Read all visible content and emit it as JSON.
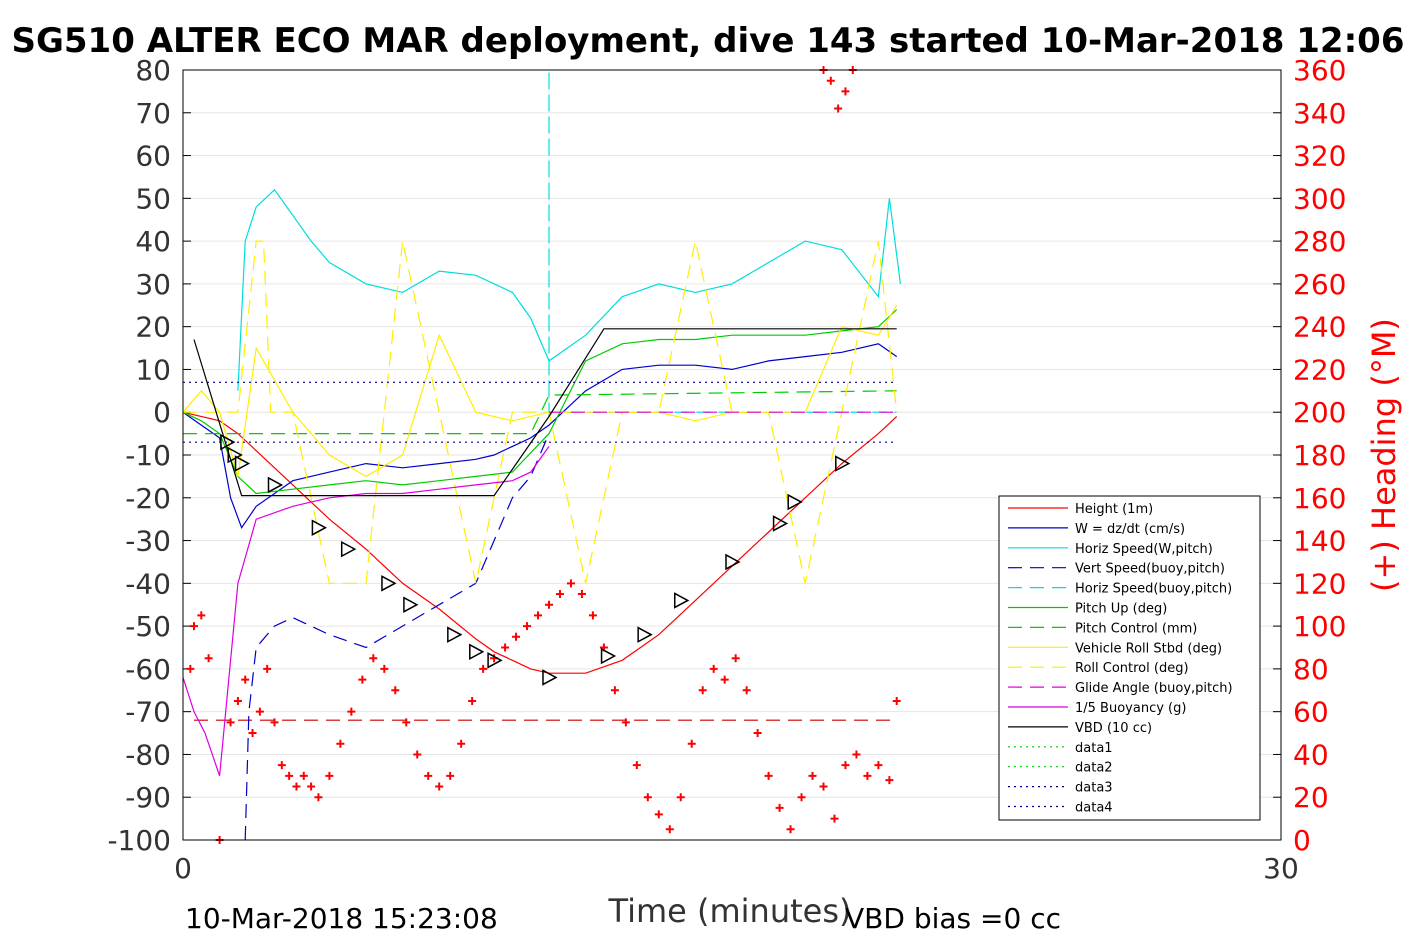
{
  "chart_data": {
    "type": "line",
    "title": "SG510 ALTER ECO MAR deployment, dive 143 started 10-Mar-2018 12:06",
    "xlabel": "Time (minutes)",
    "ylabel_right": "(+) Heading (°M)",
    "xlim": [
      0,
      30
    ],
    "ylim_left": [
      -100,
      80
    ],
    "ylim_right": [
      0,
      360
    ],
    "x_ticks": [
      "0",
      "30"
    ],
    "y_ticks_left": [
      "80",
      "70",
      "60",
      "50",
      "40",
      "30",
      "20",
      "10",
      "0",
      "-10",
      "-20",
      "-30",
      "-40",
      "-50",
      "-60",
      "-70",
      "-80",
      "-90",
      "-100"
    ],
    "y_ticks_right": [
      "360",
      "340",
      "320",
      "300",
      "280",
      "260",
      "240",
      "220",
      "200",
      "180",
      "160",
      "140",
      "120",
      "100",
      "80",
      "60",
      "40",
      "20",
      "0"
    ],
    "grid": true,
    "legend_position": "lower-right inside",
    "footer_left": "10-Mar-2018 15:23:08",
    "footer_right": "VBD bias =0 cc",
    "series": [
      {
        "name": "Height (1m)",
        "color": "#ff0000",
        "style": "solid",
        "x": [
          0,
          1,
          1.5,
          2,
          2.5,
          3,
          4,
          5,
          6,
          7,
          8,
          8.5,
          9,
          9.5,
          10,
          11,
          12,
          13,
          14,
          15,
          16,
          17,
          18,
          19,
          19.5
        ],
        "y": [
          0,
          -2,
          -5,
          -9,
          -13,
          -17,
          -25,
          -32,
          -40,
          -46,
          -53,
          -56,
          -58,
          -60,
          -61,
          -61,
          -58,
          -52,
          -44,
          -36,
          -28,
          -20,
          -12,
          -5,
          -1
        ]
      },
      {
        "name": "W = dz/dt (cm/s)",
        "color": "#0000cc",
        "style": "solid",
        "x": [
          0,
          0.5,
          1,
          1.3,
          1.6,
          2,
          3,
          4,
          5,
          6,
          7,
          8,
          8.5,
          9,
          9.5,
          10,
          11,
          12,
          13,
          14,
          15,
          16,
          17,
          18,
          19,
          19.5
        ],
        "y": [
          0,
          -3,
          -6,
          -20,
          -27,
          -22,
          -16,
          -14,
          -12,
          -13,
          -12,
          -11,
          -10,
          -8,
          -6,
          -3,
          5,
          10,
          11,
          11,
          10,
          12,
          13,
          14,
          16,
          13
        ]
      },
      {
        "name": "Horiz Speed(W,pitch)",
        "color": "#00dddd",
        "style": "solid",
        "x": [
          1.5,
          1.7,
          2,
          2.5,
          3,
          3.5,
          4,
          5,
          6,
          7,
          8,
          9,
          9.5,
          10,
          11,
          12,
          13,
          14,
          15,
          16,
          17,
          18,
          19,
          19.3,
          19.6
        ],
        "y": [
          5,
          40,
          48,
          52,
          46,
          40,
          35,
          30,
          28,
          33,
          32,
          28,
          22,
          12,
          18,
          27,
          30,
          28,
          30,
          35,
          40,
          38,
          27,
          50,
          30
        ]
      },
      {
        "name": "Vert Speed(buoy,pitch)",
        "color": "#0000cc",
        "style": "dashed",
        "x": [
          1.7,
          1.8,
          2,
          2.5,
          3,
          4,
          5,
          6,
          7,
          8,
          8.5,
          9,
          9.5,
          10
        ],
        "y": [
          -100,
          -70,
          -55,
          -50,
          -48,
          -52,
          -55,
          -50,
          -45,
          -40,
          -30,
          -20,
          -15,
          -5
        ]
      },
      {
        "name": "Horiz Speed(buoy,pitch)",
        "color": "#00dddd",
        "style": "dashed",
        "x": [
          10,
          10,
          10,
          10.2,
          12,
          19.5
        ],
        "y": [
          -1,
          80,
          0,
          0,
          0,
          0
        ]
      },
      {
        "name": "Pitch Up (deg)",
        "color": "#00cc00",
        "style": "solid",
        "x": [
          0,
          0.5,
          1,
          1.5,
          2,
          3,
          4,
          5,
          6,
          7,
          8,
          9,
          10,
          11,
          12,
          13,
          14,
          15,
          16,
          17,
          18,
          19,
          19.5
        ],
        "y": [
          0,
          -2,
          -5,
          -15,
          -19,
          -18,
          -17,
          -16,
          -17,
          -16,
          -15,
          -14,
          -5,
          12,
          16,
          17,
          17,
          18,
          18,
          18,
          19,
          20,
          24
        ]
      },
      {
        "name": "Pitch Control (mm)",
        "color": "#00cc00",
        "style": "dashed",
        "x": [
          0,
          1.5,
          8,
          8.5,
          9,
          9.5,
          10,
          19.5
        ],
        "y": [
          -5,
          -5,
          -5,
          -5,
          -5,
          -5,
          4,
          5
        ]
      },
      {
        "name": "Vehicle Roll Stbd (deg)",
        "color": "#ffee00",
        "style": "solid",
        "x": [
          0,
          0.5,
          1,
          1.5,
          2,
          3,
          4,
          5,
          6,
          7,
          8,
          9,
          10,
          11,
          12,
          13,
          14,
          15,
          16,
          17,
          18,
          19,
          19.5
        ],
        "y": [
          0,
          5,
          0,
          -15,
          15,
          0,
          -10,
          -15,
          -10,
          18,
          0,
          -2,
          0,
          0,
          0,
          0,
          -2,
          0,
          0,
          0,
          20,
          18,
          25
        ]
      },
      {
        "name": "Roll Control (deg)",
        "color": "#ffee00",
        "style": "dashed",
        "x": [
          0,
          1.5,
          2,
          2.2,
          2.4,
          3,
          4,
          5,
          5.5,
          6,
          7,
          8,
          9,
          10,
          11,
          12,
          13,
          14,
          15,
          16,
          17,
          18,
          19,
          19.5
        ],
        "y": [
          0,
          0,
          40,
          40,
          0,
          0,
          -40,
          -40,
          0,
          40,
          0,
          -40,
          0,
          0,
          -40,
          0,
          0,
          40,
          0,
          0,
          -40,
          0,
          40,
          0
        ]
      },
      {
        "name": "Glide Angle (buoy,pitch)",
        "color": "#dd00dd",
        "style": "dashed",
        "x": [
          10,
          19.5
        ],
        "y": [
          0,
          0
        ]
      },
      {
        "name": "1/5 Buoyancy (g)",
        "color": "#dd00dd",
        "style": "solid",
        "x": [
          0,
          0.3,
          0.6,
          1,
          1.5,
          2,
          3,
          4,
          5,
          6,
          7,
          8,
          9,
          9.5,
          10
        ],
        "y": [
          -62,
          -70,
          -75,
          -85,
          -40,
          -25,
          -22,
          -20,
          -19,
          -19,
          -18,
          -17,
          -16,
          -14,
          -8
        ]
      },
      {
        "name": "VBD (10 cc)",
        "color": "#000000",
        "style": "solid",
        "x": [
          0.3,
          1.6,
          8.5,
          10,
          11.5,
          19.5
        ],
        "y": [
          17,
          -19.5,
          -19.5,
          -1,
          19.5,
          19.5
        ]
      },
      {
        "name": "data1",
        "color": "#00cc00",
        "style": "dotted",
        "x": [],
        "y": []
      },
      {
        "name": "data2",
        "color": "#00cc00",
        "style": "dotted",
        "x": [],
        "y": []
      },
      {
        "name": "data3",
        "color": "#000088",
        "style": "dotted",
        "x": [
          0,
          19.5
        ],
        "y": [
          7,
          7
        ]
      },
      {
        "name": "data4",
        "color": "#000088",
        "style": "dotted",
        "x": [
          0,
          19.5
        ],
        "y": [
          -7,
          -7
        ]
      }
    ],
    "extra_lines": [
      {
        "color": "#cc0000",
        "style": "dashed",
        "x": [
          0.3,
          19.5
        ],
        "y": [
          -72,
          -72
        ]
      }
    ],
    "heading_points": {
      "color": "#ff0000",
      "marker": "+",
      "axis": "right",
      "x": [
        0.2,
        0.3,
        0.5,
        0.7,
        1,
        1.3,
        1.5,
        1.7,
        1.9,
        2.1,
        2.3,
        2.5,
        2.7,
        2.9,
        3.1,
        3.3,
        3.5,
        3.7,
        4,
        4.3,
        4.6,
        4.9,
        5.2,
        5.5,
        5.8,
        6.1,
        6.4,
        6.7,
        7,
        7.3,
        7.6,
        7.9,
        8.2,
        8.5,
        8.8,
        9.1,
        9.4,
        9.7,
        10,
        10.3,
        10.6,
        10.9,
        11.2,
        11.5,
        11.8,
        12.1,
        12.4,
        12.7,
        13,
        13.3,
        13.6,
        13.9,
        14.2,
        14.5,
        14.8,
        15.1,
        15.4,
        15.7,
        16,
        16.3,
        16.6,
        16.9,
        17.2,
        17.5,
        17.8,
        18.1,
        18.4,
        18.7,
        19,
        19.3,
        19.5
      ],
      "y": [
        80,
        100,
        105,
        85,
        0,
        55,
        65,
        75,
        50,
        60,
        80,
        55,
        35,
        30,
        25,
        30,
        25,
        20,
        30,
        45,
        60,
        75,
        85,
        80,
        70,
        55,
        40,
        30,
        25,
        30,
        45,
        65,
        80,
        85,
        90,
        95,
        100,
        105,
        110,
        115,
        120,
        115,
        105,
        90,
        70,
        55,
        35,
        20,
        12,
        5,
        20,
        45,
        70,
        80,
        75,
        85,
        70,
        50,
        30,
        15,
        5,
        20,
        30,
        25,
        10,
        35,
        40,
        30,
        35,
        28,
        65
      ]
    },
    "heading_points_top": {
      "color": "#ff0000",
      "marker": "+",
      "axis": "right",
      "x": [
        17.5,
        17.7,
        17.9,
        18.1,
        18.3
      ],
      "y": [
        360,
        355,
        342,
        350,
        360
      ]
    },
    "triangle_markers": {
      "color": "#000000",
      "x": [
        1.2,
        1.4,
        1.6,
        2.5,
        3.7,
        4.5,
        5.6,
        6.2,
        7.4,
        8,
        8.5,
        10,
        11.6,
        12.6,
        13.6,
        15,
        16.3,
        16.7,
        18
      ],
      "y": [
        -7,
        -10,
        -12,
        -17,
        -27,
        -32,
        -40,
        -45,
        -52,
        -56,
        -58,
        -62,
        -57,
        -52,
        -44,
        -35,
        -26,
        -21,
        -12
      ]
    }
  }
}
